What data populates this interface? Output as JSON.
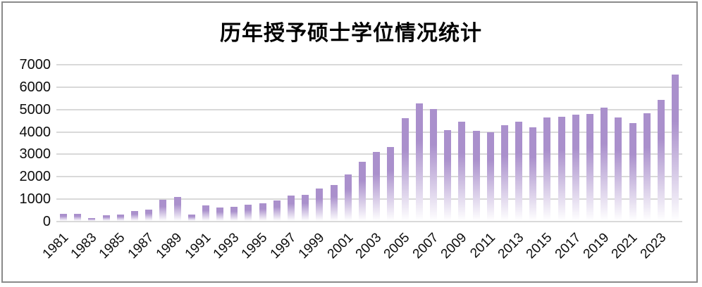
{
  "window": {
    "border_color": "#8a8a8a",
    "background_color": "#ffffff"
  },
  "chart_data": {
    "type": "bar",
    "title": "历年授予硕士学位情况统计",
    "xlabel": "",
    "ylabel": "",
    "categories": [
      1981,
      1982,
      1983,
      1984,
      1985,
      1986,
      1987,
      1988,
      1989,
      1990,
      1991,
      1992,
      1993,
      1994,
      1995,
      1996,
      1997,
      1998,
      1999,
      2000,
      2001,
      2002,
      2003,
      2004,
      2005,
      2006,
      2007,
      2008,
      2009,
      2010,
      2011,
      2012,
      2013,
      2014,
      2015,
      2016,
      2017,
      2018,
      2019,
      2020,
      2021,
      2022,
      2023,
      2024
    ],
    "values": [
      300,
      330,
      140,
      250,
      290,
      430,
      510,
      950,
      1080,
      290,
      690,
      600,
      640,
      730,
      800,
      900,
      1130,
      1150,
      1430,
      1610,
      2080,
      2650,
      3080,
      3290,
      4570,
      5230,
      4990,
      4060,
      4420,
      4030,
      3940,
      4270,
      4430,
      4170,
      4610,
      4640,
      4740,
      4780,
      5060,
      4630,
      4360,
      4800,
      5400,
      6520
    ],
    "x_tick_labels": [
      "1981",
      "1983",
      "1985",
      "1987",
      "1989",
      "1991",
      "1993",
      "1995",
      "1997",
      "1999",
      "2001",
      "2003",
      "2005",
      "2007",
      "2009",
      "2011",
      "2013",
      "2015",
      "2017",
      "2019",
      "2021",
      "2023"
    ],
    "y_ticks": [
      0,
      1000,
      2000,
      3000,
      4000,
      5000,
      6000,
      7000
    ],
    "ylim": [
      0,
      7000
    ],
    "grid": "horizontal",
    "legend": "none",
    "tick_label_rotation": 45,
    "colors": {
      "bar_top": "#aa90cc",
      "bar_fade_bottom": "#ffffff",
      "gridline": "#d9d9d9",
      "axis_text": "#0d0d0d",
      "title_text": "#000000"
    }
  }
}
